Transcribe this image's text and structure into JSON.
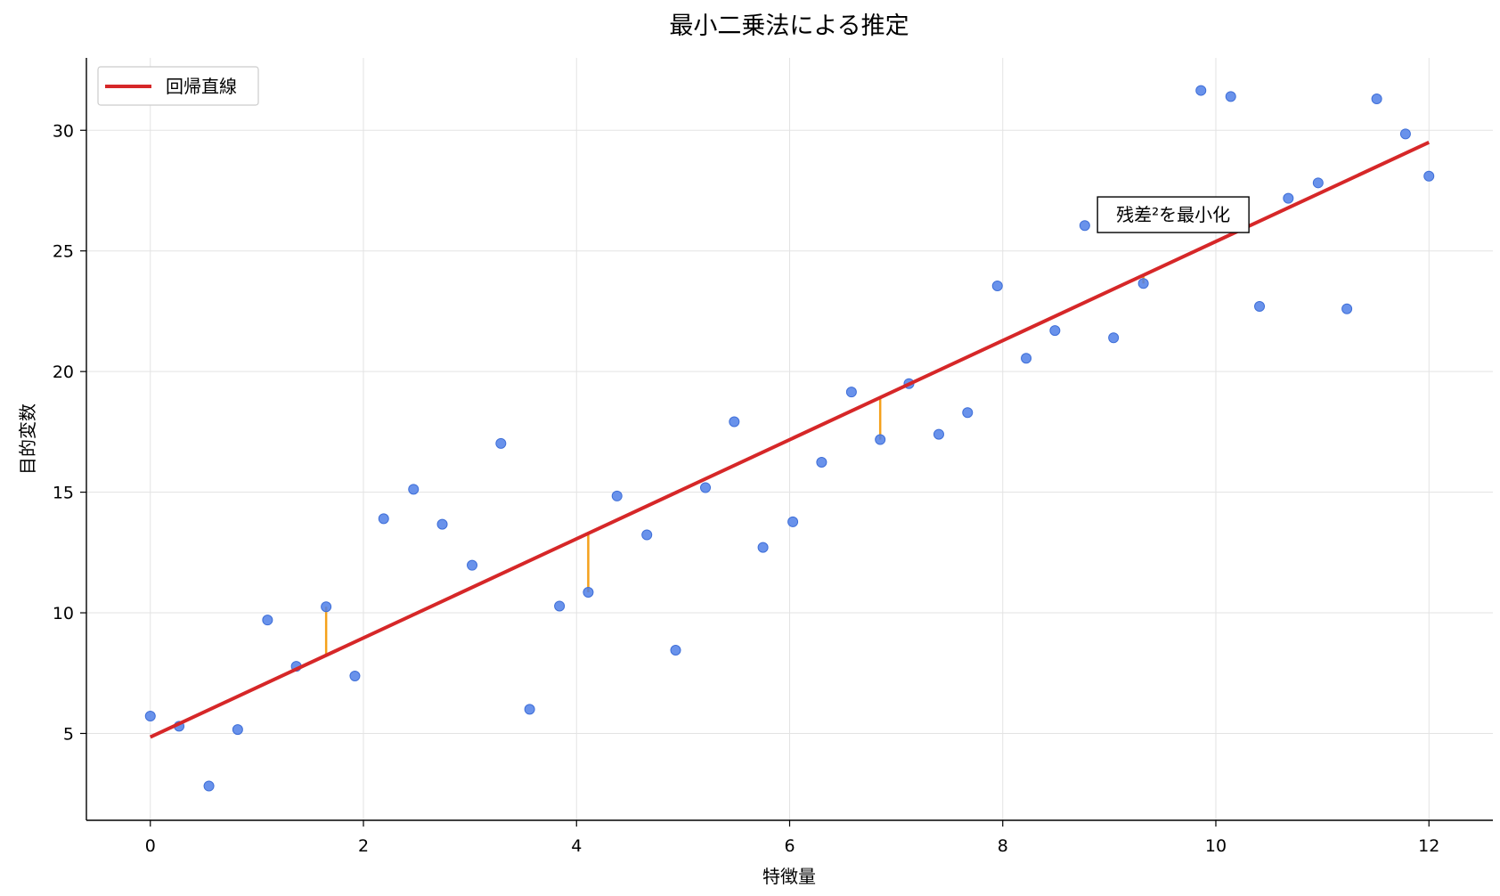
{
  "chart_data": {
    "type": "scatter",
    "title": "最小二乗法による推定",
    "xlabel": "特徴量",
    "ylabel": "目的変数",
    "xlim": [
      -0.6,
      12.6
    ],
    "ylim": [
      1.4,
      33.0
    ],
    "xticks": [
      0,
      2,
      4,
      6,
      8,
      10,
      12
    ],
    "yticks": [
      5,
      10,
      15,
      20,
      25,
      30
    ],
    "grid": true,
    "legend_position": "top-left",
    "points": [
      [
        0.0,
        5.72
      ],
      [
        0.27,
        5.3
      ],
      [
        0.55,
        2.82
      ],
      [
        0.82,
        5.16
      ],
      [
        1.1,
        9.7
      ],
      [
        1.37,
        7.78
      ],
      [
        1.65,
        10.25
      ],
      [
        1.92,
        7.38
      ],
      [
        2.19,
        13.9
      ],
      [
        2.47,
        15.12
      ],
      [
        2.74,
        13.67
      ],
      [
        3.02,
        11.97
      ],
      [
        3.29,
        17.02
      ],
      [
        3.56,
        6.0
      ],
      [
        3.84,
        10.28
      ],
      [
        4.11,
        10.85
      ],
      [
        4.38,
        14.84
      ],
      [
        4.66,
        13.23
      ],
      [
        4.93,
        8.45
      ],
      [
        5.21,
        15.19
      ],
      [
        5.48,
        17.92
      ],
      [
        5.75,
        12.71
      ],
      [
        6.03,
        13.77
      ],
      [
        6.3,
        16.24
      ],
      [
        6.58,
        19.15
      ],
      [
        6.85,
        17.18
      ],
      [
        7.12,
        19.5
      ],
      [
        7.4,
        17.4
      ],
      [
        7.67,
        18.3
      ],
      [
        7.95,
        23.55
      ],
      [
        8.22,
        20.55
      ],
      [
        8.49,
        21.7
      ],
      [
        8.77,
        26.05
      ],
      [
        9.04,
        21.4
      ],
      [
        9.32,
        23.65
      ],
      [
        9.86,
        31.65
      ],
      [
        10.14,
        31.4
      ],
      [
        10.41,
        22.7
      ],
      [
        10.68,
        27.18
      ],
      [
        10.96,
        27.82
      ],
      [
        11.23,
        22.6
      ],
      [
        11.51,
        31.3
      ],
      [
        11.78,
        29.85
      ],
      [
        12.0,
        28.1
      ]
    ],
    "regression_line": {
      "name": "回帰直線",
      "x": [
        0,
        12
      ],
      "y": [
        4.85,
        29.5
      ]
    },
    "residuals": [
      {
        "x": 1.65,
        "y_point": 10.25,
        "y_fit": 8.24
      },
      {
        "x": 4.11,
        "y_point": 10.85,
        "y_fit": 13.29
      },
      {
        "x": 6.85,
        "y_point": 17.18,
        "y_fit": 18.92
      },
      {
        "x": 9.32,
        "y_point": 23.65,
        "y_fit": 24.0
      }
    ],
    "annotation": {
      "text": "残差²を最小化",
      "x": 9.6,
      "y": 26.5
    },
    "colors": {
      "points": "#4f7fe8",
      "line": "#d62728",
      "residual": "#f5a11b",
      "grid": "#e3e3e3"
    }
  }
}
